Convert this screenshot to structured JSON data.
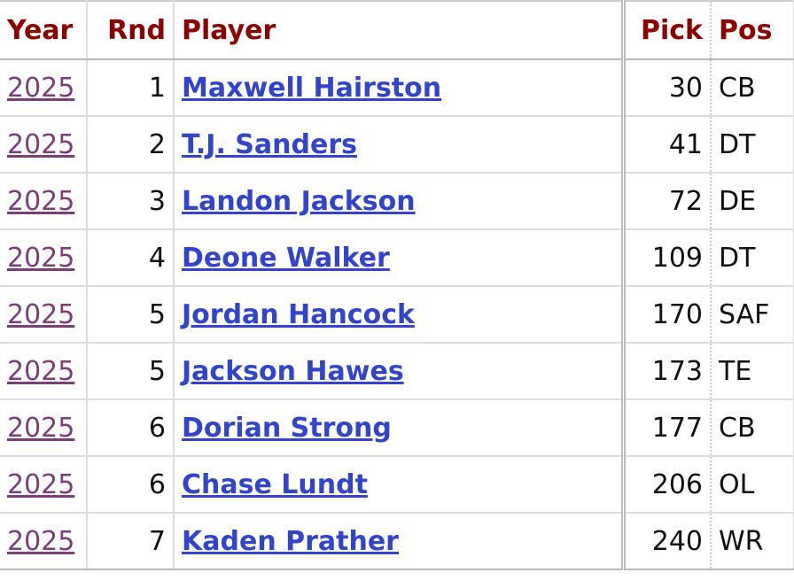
{
  "table": {
    "header": [
      "Year",
      "Rnd",
      "Player",
      "Pick",
      "Pos"
    ],
    "rows": [
      [
        "2025",
        1,
        "Maxwell Hairston",
        30,
        "CB"
      ],
      [
        "2025",
        2,
        "T.J. Sanders",
        41,
        "DT"
      ],
      [
        "2025",
        3,
        "Landon Jackson",
        72,
        "DE"
      ],
      [
        "2025",
        4,
        "Deone Walker",
        109,
        "DT"
      ],
      [
        "2025",
        5,
        "Jordan Hancock",
        170,
        "SAF"
      ],
      [
        "2025",
        5,
        "Jackson Hawes",
        173,
        "TE"
      ],
      [
        "2025",
        6,
        "Dorian Strong",
        177,
        "CB"
      ],
      [
        "2025",
        6,
        "Chase Lundt",
        206,
        "OL"
      ],
      [
        "2025",
        7,
        "Kaden Prather",
        240,
        "WR"
      ]
    ]
  }
}
